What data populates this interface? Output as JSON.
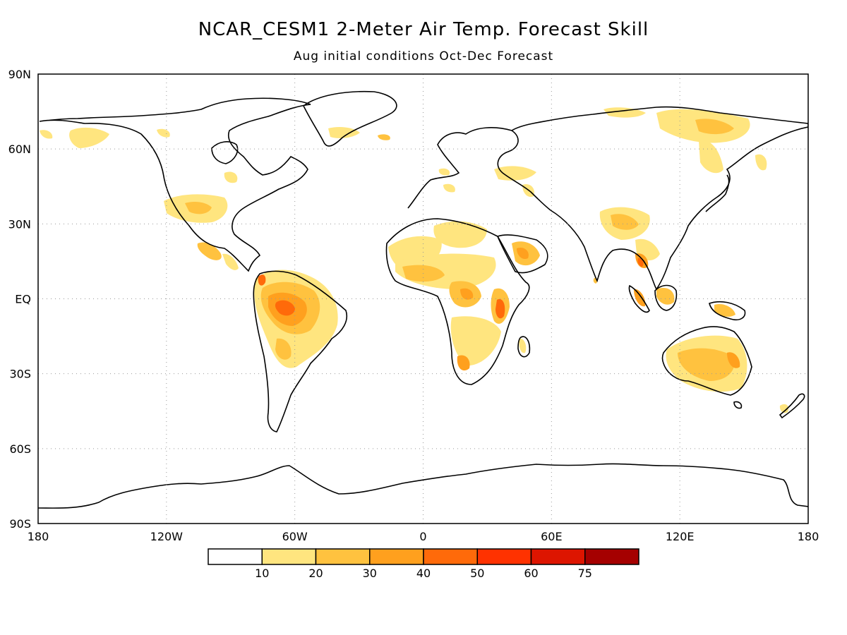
{
  "title": "NCAR_CESM1 2-Meter Air Temp. Forecast Skill",
  "subtitle": "Aug initial conditions   Oct-Dec Forecast",
  "map": {
    "projection": "equirectangular",
    "lon_range": [
      -180,
      180
    ],
    "lat_range": [
      -90,
      90
    ],
    "grid": true,
    "grid_style": "dotted",
    "lon_ticks": [
      {
        "value": -180,
        "label": "180"
      },
      {
        "value": -120,
        "label": "120W"
      },
      {
        "value": -60,
        "label": "60W"
      },
      {
        "value": 0,
        "label": "0"
      },
      {
        "value": 60,
        "label": "60E"
      },
      {
        "value": 120,
        "label": "120E"
      },
      {
        "value": 180,
        "label": "180"
      }
    ],
    "lat_ticks": [
      {
        "value": 90,
        "label": "90N"
      },
      {
        "value": 60,
        "label": "60N"
      },
      {
        "value": 30,
        "label": "30N"
      },
      {
        "value": 0,
        "label": "EQ"
      },
      {
        "value": -30,
        "label": "30S"
      },
      {
        "value": -60,
        "label": "60S"
      },
      {
        "value": -90,
        "label": "90S"
      }
    ]
  },
  "colorbar": {
    "colors": [
      "#ffffff",
      "#ffe57f",
      "#ffc23f",
      "#ffa01e",
      "#ff6a0a",
      "#ff3200",
      "#dd1500",
      "#a50000"
    ],
    "labels": [
      "10",
      "20",
      "30",
      "40",
      "50",
      "60",
      "75"
    ]
  }
}
